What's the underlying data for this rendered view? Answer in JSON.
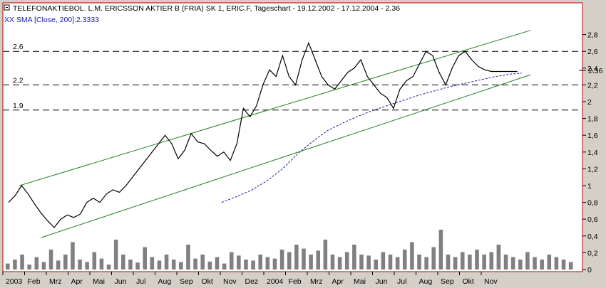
{
  "header": {
    "title": "TELEFONAKTIEBOL. L.M. ERICSSON AKTIER B (FRIA) SK 1, ERIC.F, Tageschart - 19.12.2002 - 17.12.2004 - 2.36",
    "sma_label": "XX SMA [Close, 200]:2.3333"
  },
  "colors": {
    "price": "#000000",
    "sma": "#1a1aa6",
    "channel": "#208020",
    "frame": "#c00000",
    "volume": "#808080",
    "background": "#ffffff"
  },
  "chart_data": {
    "type": "line",
    "title": "TELEFONAKTIEBOL. L.M. ERICSSON AKTIER B (FRIA) SK 1, ERIC.F, Tageschart - 19.12.2002 - 17.12.2004 - 2.36",
    "ylim": [
      0,
      2.9
    ],
    "y_ticks": [
      "2,8",
      "2,6",
      "2,4",
      "2,2",
      "2",
      "1,8",
      "1,6",
      "1,4",
      "1,2",
      "1",
      "0,8",
      "0,6",
      "0,4",
      "0,2",
      "0"
    ],
    "x_ticks": [
      "2003",
      "Feb",
      "Mrz",
      "Apr",
      "Mai",
      "Jun",
      "Jul",
      "Aug",
      "Sep",
      "Okt",
      "Nov",
      "Dez",
      "2004",
      "Feb",
      "Mrz",
      "Apr",
      "Mai",
      "Jun",
      "Jul",
      "Aug",
      "Sep",
      "Okt",
      "Nov"
    ],
    "last_value_label": "2.36",
    "horizontal_levels": [
      {
        "label": "2.6",
        "value": 2.6
      },
      {
        "label": "2.2",
        "value": 2.2
      },
      {
        "label": "1.9",
        "value": 1.9
      }
    ],
    "channel_lines": [
      {
        "x": [
          0.5,
          24
        ],
        "y": [
          1.0,
          2.85
        ]
      },
      {
        "x": [
          1.5,
          24
        ],
        "y": [
          0.38,
          2.32
        ]
      }
    ],
    "price_series": {
      "name": "Close",
      "x": [
        0,
        0.3,
        0.6,
        0.9,
        1.2,
        1.5,
        1.8,
        2.1,
        2.4,
        2.7,
        3,
        3.3,
        3.6,
        3.9,
        4.2,
        4.5,
        4.8,
        5.1,
        5.4,
        5.7,
        6,
        6.3,
        6.6,
        6.9,
        7.2,
        7.5,
        7.8,
        8.1,
        8.4,
        8.7,
        9,
        9.3,
        9.6,
        9.9,
        10.2,
        10.5,
        10.8,
        11.1,
        11.4,
        11.7,
        12,
        12.3,
        12.6,
        12.9,
        13.2,
        13.5,
        13.8,
        14.1,
        14.4,
        14.7,
        15,
        15.3,
        15.6,
        15.9,
        16.2,
        16.5,
        16.8,
        17.1,
        17.4,
        17.7,
        18,
        18.3,
        18.6,
        18.9,
        19.2,
        19.5,
        19.8,
        20.1,
        20.4,
        20.7,
        21,
        21.3,
        21.6,
        21.9,
        22.2,
        22.5,
        22.8,
        23.1,
        23.4
      ],
      "y": [
        0.8,
        0.88,
        1.0,
        0.9,
        0.78,
        0.67,
        0.58,
        0.5,
        0.6,
        0.65,
        0.62,
        0.66,
        0.8,
        0.85,
        0.8,
        0.9,
        0.95,
        0.92,
        1.0,
        1.1,
        1.2,
        1.3,
        1.4,
        1.5,
        1.6,
        1.5,
        1.32,
        1.42,
        1.62,
        1.52,
        1.5,
        1.42,
        1.35,
        1.4,
        1.3,
        1.5,
        1.92,
        1.82,
        1.95,
        2.2,
        2.38,
        2.3,
        2.55,
        2.3,
        2.2,
        2.5,
        2.7,
        2.5,
        2.3,
        2.2,
        2.15,
        2.25,
        2.35,
        2.4,
        2.5,
        2.3,
        2.2,
        2.1,
        2.05,
        1.92,
        2.15,
        2.25,
        2.3,
        2.45,
        2.6,
        2.55,
        2.35,
        2.2,
        2.4,
        2.55,
        2.6,
        2.5,
        2.42,
        2.38,
        2.36,
        2.36,
        2.36,
        2.36,
        2.36
      ]
    },
    "sma_series": {
      "name": "XX SMA [Close, 200]",
      "x": [
        9.8,
        10.5,
        11.2,
        11.9,
        12.6,
        13.3,
        14,
        14.7,
        15.4,
        16.1,
        16.8,
        17.5,
        18.2,
        18.9,
        19.6,
        20.3,
        21,
        21.7,
        22.4,
        23.1,
        23.6
      ],
      "y": [
        0.8,
        0.87,
        0.95,
        1.06,
        1.2,
        1.38,
        1.53,
        1.66,
        1.75,
        1.83,
        1.9,
        1.96,
        2.02,
        2.08,
        2.13,
        2.18,
        2.22,
        2.26,
        2.3,
        2.33,
        2.34
      ]
    },
    "volume_heights": [
      0.12,
      0.2,
      0.3,
      0.1,
      0.25,
      0.15,
      0.4,
      0.18,
      0.3,
      0.55,
      0.2,
      0.15,
      0.35,
      0.22,
      0.1,
      0.6,
      0.3,
      0.2,
      0.14,
      0.45,
      0.25,
      0.18,
      0.3,
      0.2,
      0.15,
      0.5,
      0.22,
      0.3,
      0.16,
      0.25,
      0.12,
      0.35,
      0.28,
      0.2,
      0.18,
      0.3,
      0.25,
      0.22,
      0.4,
      0.35,
      0.5,
      0.42,
      0.3,
      0.38,
      0.6,
      0.3,
      0.25,
      0.35,
      0.5,
      0.3,
      0.28,
      0.2,
      0.35,
      0.3,
      0.25,
      0.4,
      0.55,
      0.3,
      0.25,
      0.45,
      0.8,
      0.3,
      0.25,
      0.35,
      0.3,
      0.4,
      0.3,
      0.35,
      0.5,
      0.3,
      0.25,
      0.2,
      0.35,
      0.25,
      0.2,
      0.3,
      0.25,
      0.2,
      0.15
    ]
  }
}
